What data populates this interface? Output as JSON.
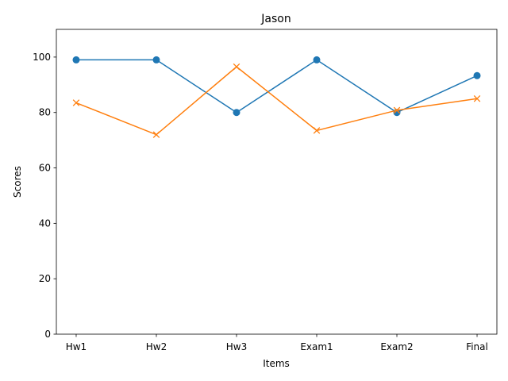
{
  "chart_data": {
    "type": "line",
    "title": "Jason",
    "xlabel": "Items",
    "ylabel": "Scores",
    "categories": [
      "Hw1",
      "Hw2",
      "Hw3",
      "Exam1",
      "Exam2",
      "Final"
    ],
    "ylim": [
      0,
      110
    ],
    "yticks": [
      0,
      20,
      40,
      60,
      80,
      100
    ],
    "grid": false,
    "series": [
      {
        "values": [
          99,
          99,
          80,
          99,
          80,
          93.3
        ],
        "color": "#1f77b4",
        "marker": "circle"
      },
      {
        "values": [
          83.5,
          72,
          96.5,
          73.5,
          80.8,
          85
        ],
        "color": "#ff7f0e",
        "marker": "x"
      }
    ]
  }
}
